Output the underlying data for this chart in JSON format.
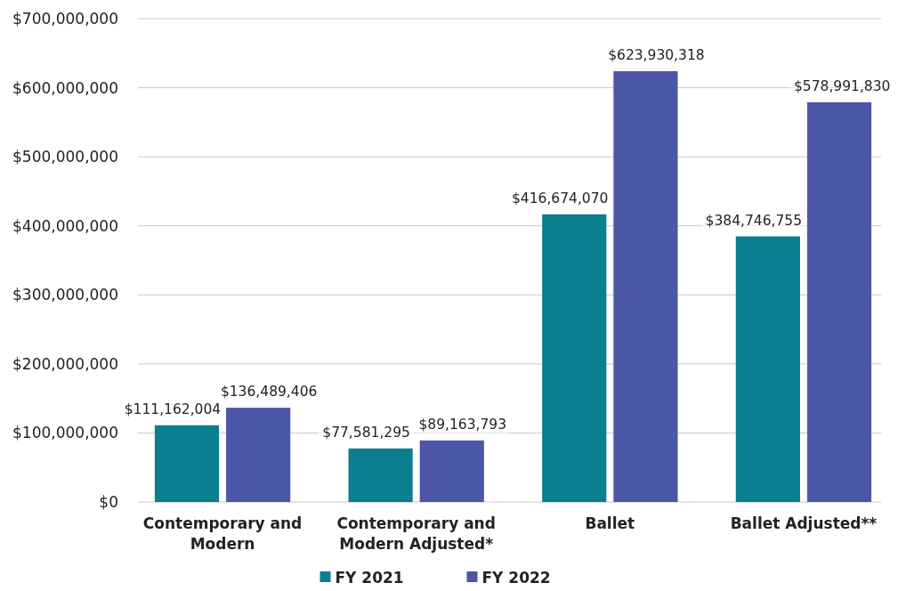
{
  "chart_data": {
    "type": "bar",
    "categories": [
      "Contemporary and Modern",
      "Contemporary and Modern Adjusted*",
      "Ballet",
      "Ballet Adjusted**"
    ],
    "series": [
      {
        "name": "FY 2021",
        "color": "#0a7f8f",
        "values": [
          111162004,
          77581295,
          416674070,
          384746755
        ],
        "value_labels": [
          "$111,162,004",
          "$77,581,295",
          "$416,674,070",
          "$384,746,755"
        ]
      },
      {
        "name": "FY 2022",
        "color": "#4c56a6",
        "values": [
          136489406,
          89163793,
          623930318,
          578991830
        ],
        "value_labels": [
          "$136,489,406",
          "$89,163,793",
          "$623,930,318",
          "$578,991,830"
        ]
      }
    ],
    "ylim": [
      0,
      700000000
    ],
    "yticks": [
      {
        "value": 0,
        "label": "$0"
      },
      {
        "value": 100000000,
        "label": "$100,000,000"
      },
      {
        "value": 200000000,
        "label": "$200,000,000"
      },
      {
        "value": 300000000,
        "label": "$300,000,000"
      },
      {
        "value": 400000000,
        "label": "$400,000,000"
      },
      {
        "value": 500000000,
        "label": "$500,000,000"
      },
      {
        "value": 600000000,
        "label": "$600,000,000"
      },
      {
        "value": 700000000,
        "label": "$700,000,000"
      }
    ],
    "grid": "y",
    "legend": "bottom"
  }
}
